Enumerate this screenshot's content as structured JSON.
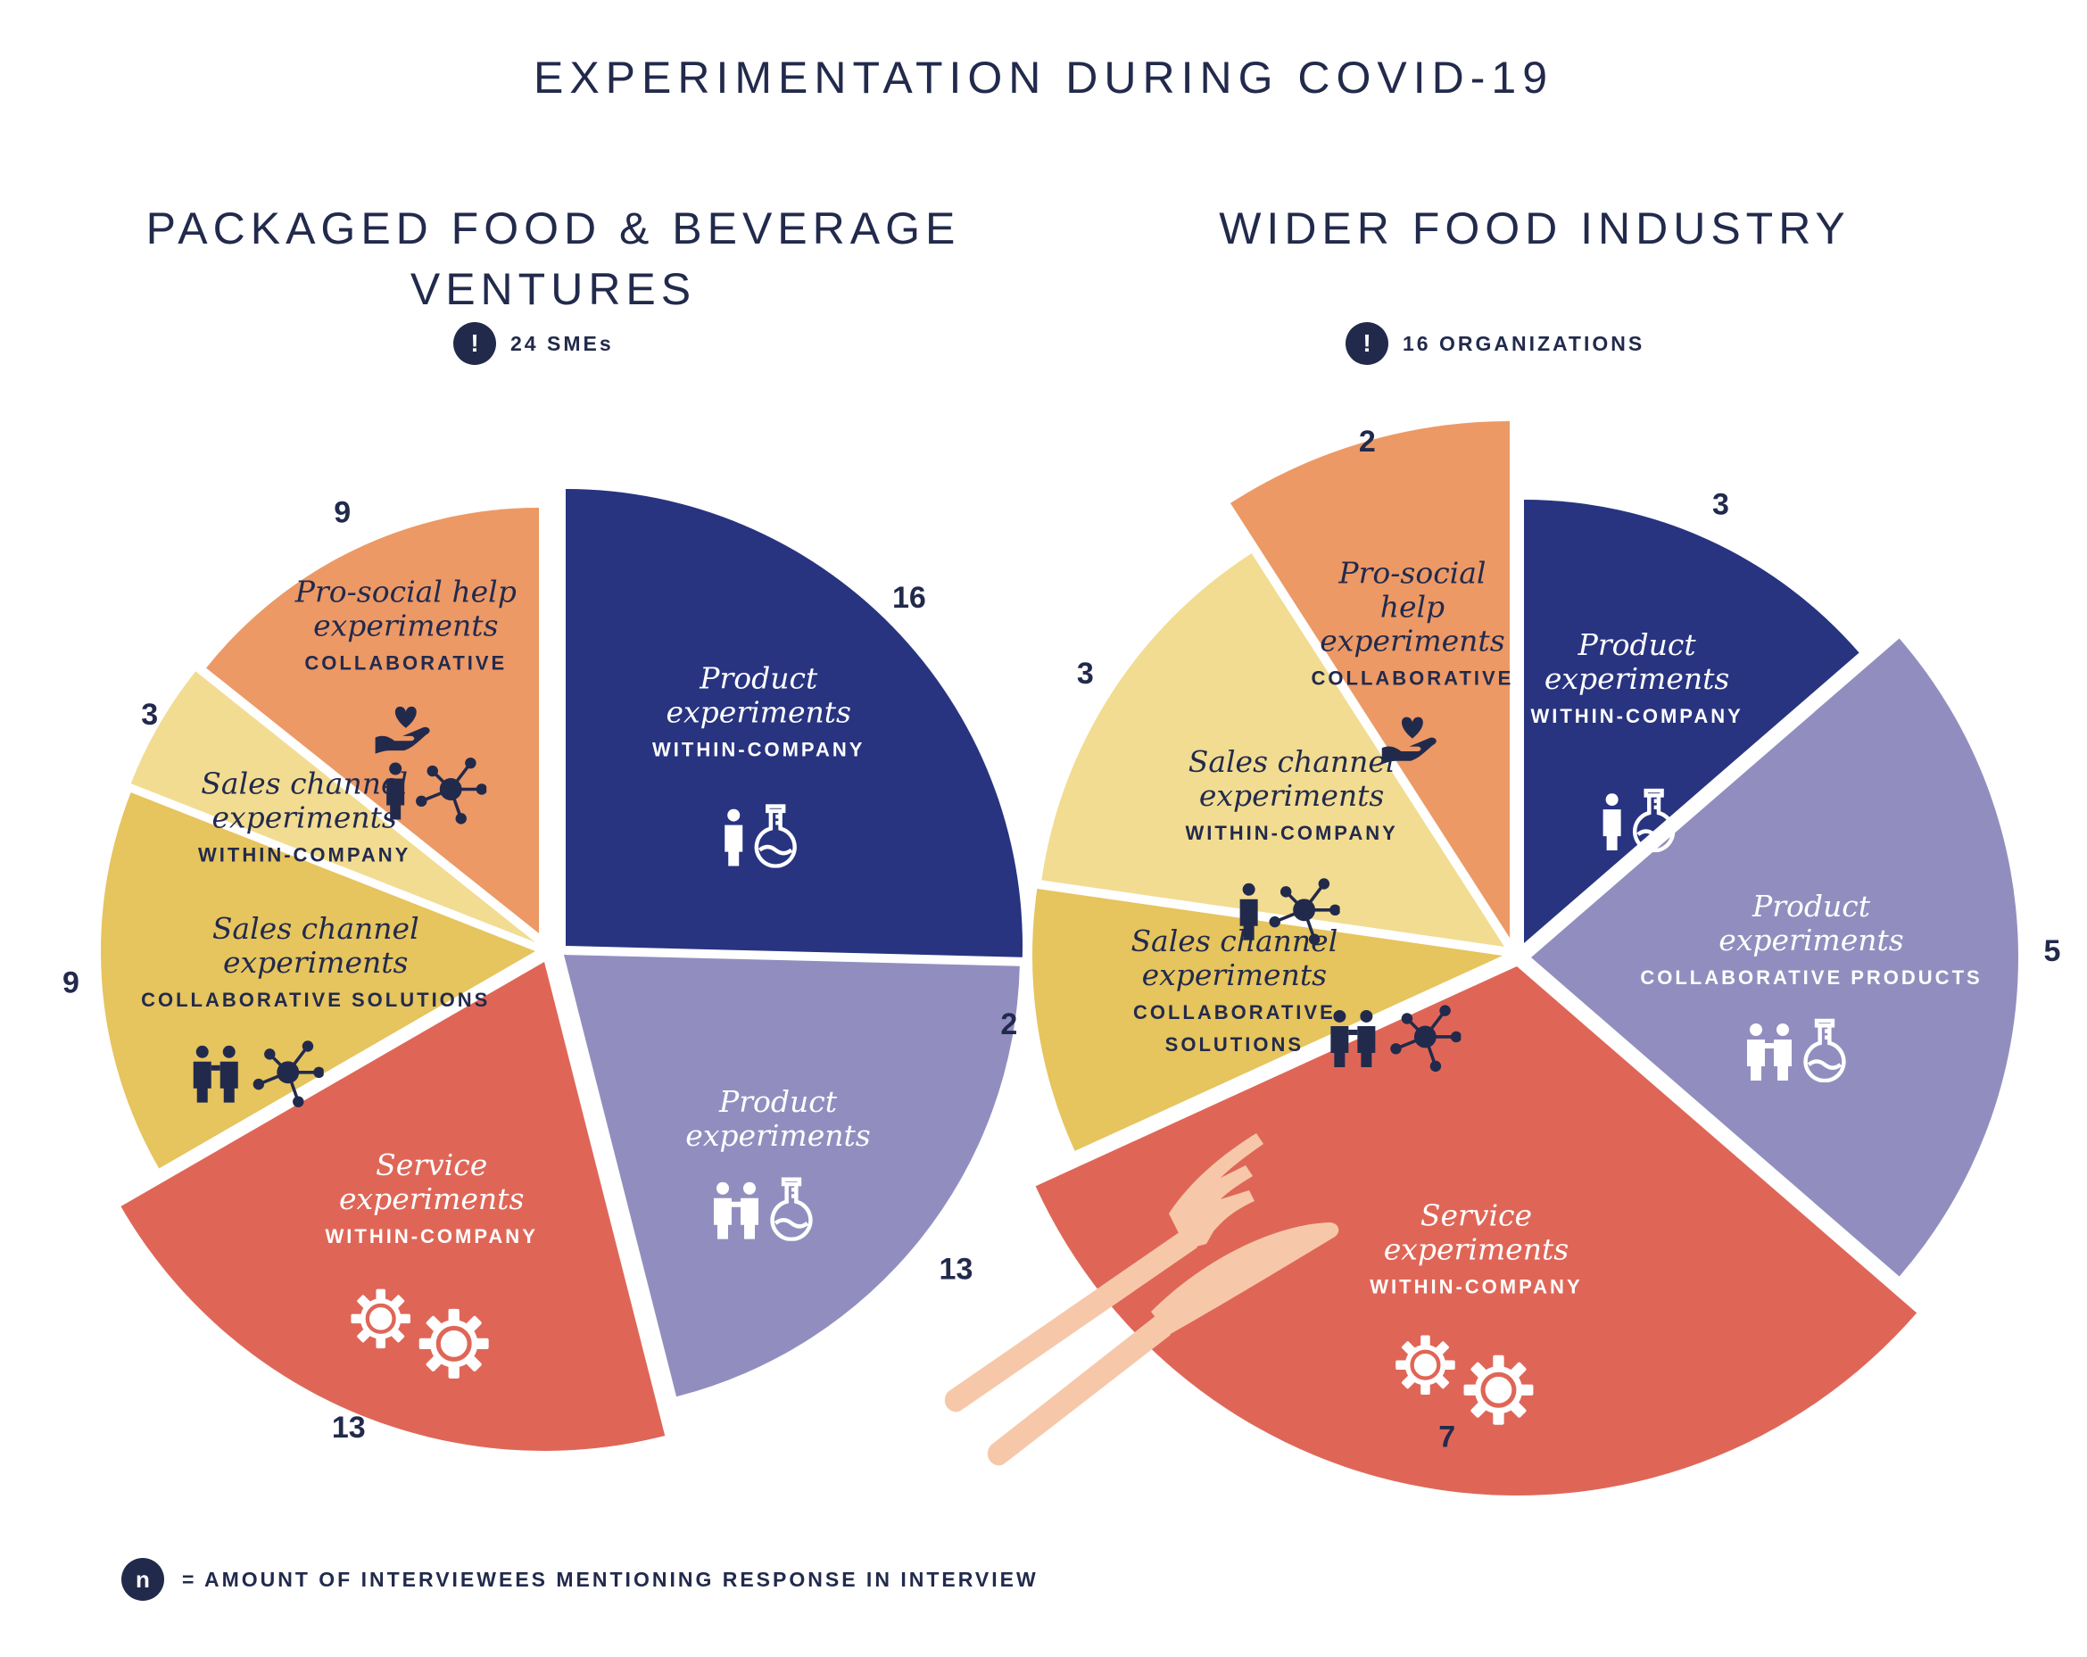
{
  "title": "EXPERIMENTATION DURING COVID-19",
  "footnote": {
    "symbol": "n",
    "text": "= AMOUNT OF INTERVIEWEES MENTIONING RESPONSE IN INTERVIEW"
  },
  "colors": {
    "navy": "#283480",
    "lavender": "#918ebf",
    "coral": "#df6657",
    "yellow": "#e6c45e",
    "pale_yellow": "#f2dc91",
    "orange": "#ec9966",
    "cutlery": "#f6c8a9",
    "text": "#222a4c"
  },
  "charts": [
    {
      "title_lines": [
        "PACKAGED FOOD & BEVERAGE",
        "VENTURES"
      ],
      "badge": "24 SMEs"
    },
    {
      "title_lines": [
        "WIDER FOOD INDUSTRY"
      ],
      "badge": "16 ORGANIZATIONS"
    }
  ],
  "chart_data": [
    {
      "type": "pie",
      "title": "PACKAGED FOOD & BEVERAGE VENTURES",
      "note": "24 SMEs",
      "slices": [
        {
          "value": 16,
          "label_lines": [
            "Product",
            "experiments"
          ],
          "sub_lines": [
            "WITHIN-COMPANY"
          ],
          "color": "#283480",
          "text_color": "#ffffff",
          "icon": "person-flask-icon"
        },
        {
          "value": 13,
          "label_lines": [
            "Product",
            "experiments"
          ],
          "sub_lines": [],
          "color": "#918ebf",
          "text_color": "#ffffff",
          "icon": "two-people-flask-icon"
        },
        {
          "value": 13,
          "label_lines": [
            "Service",
            "experiments"
          ],
          "sub_lines": [
            "WITHIN-COMPANY"
          ],
          "color": "#df6657",
          "text_color": "#ffffff",
          "icon": "gears-icon"
        },
        {
          "value": 9,
          "label_lines": [
            "Sales channel",
            "experiments"
          ],
          "sub_lines": [
            "COLLABORATIVE SOLUTIONS"
          ],
          "color": "#e6c45e",
          "text_color": "#222a4c",
          "icon": "two-people-network-icon"
        },
        {
          "value": 3,
          "label_lines": [
            "Sales channel",
            "experiments"
          ],
          "sub_lines": [
            "WITHIN-COMPANY"
          ],
          "color": "#f2dc91",
          "text_color": "#222a4c",
          "icon": "person-network-icon"
        },
        {
          "value": 9,
          "label_lines": [
            "Pro-social help",
            "experiments"
          ],
          "sub_lines": [
            "COLLABORATIVE"
          ],
          "color": "#ec9966",
          "text_color": "#222a4c",
          "icon": "heart-hand-icon"
        }
      ]
    },
    {
      "type": "pie",
      "title": "WIDER FOOD INDUSTRY",
      "note": "16 ORGANIZATIONS",
      "slices": [
        {
          "value": 3,
          "label_lines": [
            "Product",
            "experiments"
          ],
          "sub_lines": [
            "WITHIN-COMPANY"
          ],
          "color": "#283480",
          "text_color": "#ffffff",
          "icon": "person-flask-icon"
        },
        {
          "value": 5,
          "label_lines": [
            "Product",
            "experiments"
          ],
          "sub_lines": [
            "COLLABORATIVE PRODUCTS"
          ],
          "color": "#918ebf",
          "text_color": "#ffffff",
          "icon": "two-people-flask-icon"
        },
        {
          "value": 7,
          "label_lines": [
            "Service",
            "experiments"
          ],
          "sub_lines": [
            "WITHIN-COMPANY"
          ],
          "color": "#df6657",
          "text_color": "#ffffff",
          "icon": "gears-icon"
        },
        {
          "value": 2,
          "label_lines": [
            "Sales channel",
            "experiments"
          ],
          "sub_lines": [
            "COLLABORATIVE",
            "SOLUTIONS"
          ],
          "color": "#e6c45e",
          "text_color": "#222a4c",
          "icon": "two-people-network-icon"
        },
        {
          "value": 3,
          "label_lines": [
            "Sales channel",
            "experiments"
          ],
          "sub_lines": [
            "WITHIN-COMPANY"
          ],
          "color": "#f2dc91",
          "text_color": "#222a4c",
          "icon": "person-network-icon"
        },
        {
          "value": 2,
          "label_lines": [
            "Pro-social",
            "help",
            "experiments"
          ],
          "sub_lines": [
            "COLLABORATIVE"
          ],
          "color": "#ec9966",
          "text_color": "#222a4c",
          "icon": "heart-hand-icon"
        }
      ]
    }
  ]
}
